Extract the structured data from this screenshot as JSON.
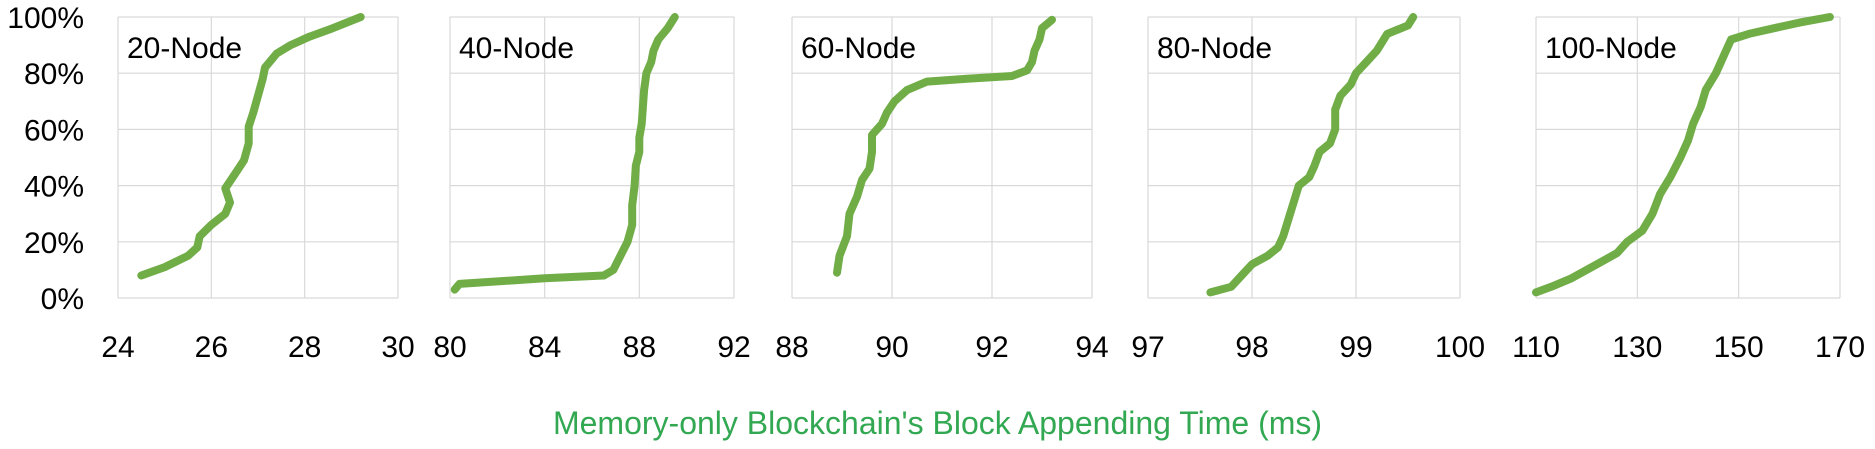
{
  "xlabel": "Memory-only Blockchain's Block Appending Time (ms)",
  "colors": {
    "series": "#70ad47",
    "xlabel": "#33a852",
    "grid": "#d9d9d9",
    "text": "#000000"
  },
  "y_ticks": [
    "0%",
    "20%",
    "40%",
    "60%",
    "80%",
    "100%"
  ],
  "chart_data": [
    {
      "type": "line",
      "label": "20-Node",
      "xlim": [
        24,
        30
      ],
      "xticks": [
        24,
        26,
        28,
        30
      ],
      "ylim": [
        0,
        1
      ],
      "grid": true,
      "points": [
        [
          24.5,
          0.08
        ],
        [
          25.0,
          0.11
        ],
        [
          25.5,
          0.15
        ],
        [
          25.7,
          0.18
        ],
        [
          25.75,
          0.22
        ],
        [
          26.0,
          0.26
        ],
        [
          26.3,
          0.3
        ],
        [
          26.4,
          0.34
        ],
        [
          26.3,
          0.39
        ],
        [
          26.5,
          0.44
        ],
        [
          26.7,
          0.49
        ],
        [
          26.8,
          0.55
        ],
        [
          26.8,
          0.61
        ],
        [
          26.9,
          0.66
        ],
        [
          27.0,
          0.72
        ],
        [
          27.1,
          0.78
        ],
        [
          27.15,
          0.82
        ],
        [
          27.4,
          0.87
        ],
        [
          27.7,
          0.9
        ],
        [
          28.1,
          0.93
        ],
        [
          28.6,
          0.96
        ],
        [
          29.2,
          1.0
        ]
      ]
    },
    {
      "type": "line",
      "label": "40-Node",
      "xlim": [
        80,
        92
      ],
      "xticks": [
        80,
        84,
        88,
        92
      ],
      "ylim": [
        0,
        1
      ],
      "grid": true,
      "points": [
        [
          80.2,
          0.03
        ],
        [
          80.4,
          0.05
        ],
        [
          84.0,
          0.07
        ],
        [
          86.5,
          0.08
        ],
        [
          86.9,
          0.1
        ],
        [
          87.2,
          0.15
        ],
        [
          87.5,
          0.2
        ],
        [
          87.7,
          0.26
        ],
        [
          87.7,
          0.33
        ],
        [
          87.8,
          0.4
        ],
        [
          87.85,
          0.47
        ],
        [
          88.0,
          0.52
        ],
        [
          88.0,
          0.57
        ],
        [
          88.1,
          0.62
        ],
        [
          88.15,
          0.68
        ],
        [
          88.2,
          0.74
        ],
        [
          88.3,
          0.8
        ],
        [
          88.5,
          0.84
        ],
        [
          88.6,
          0.88
        ],
        [
          88.8,
          0.92
        ],
        [
          89.2,
          0.96
        ],
        [
          89.5,
          1.0
        ]
      ]
    },
    {
      "type": "line",
      "label": "60-Node",
      "xlim": [
        88,
        94
      ],
      "xticks": [
        88,
        90,
        92,
        94
      ],
      "ylim": [
        0,
        1
      ],
      "grid": true,
      "points": [
        [
          88.9,
          0.09
        ],
        [
          88.95,
          0.15
        ],
        [
          89.1,
          0.22
        ],
        [
          89.15,
          0.3
        ],
        [
          89.3,
          0.36
        ],
        [
          89.4,
          0.42
        ],
        [
          89.55,
          0.46
        ],
        [
          89.6,
          0.52
        ],
        [
          89.6,
          0.58
        ],
        [
          89.8,
          0.62
        ],
        [
          89.9,
          0.66
        ],
        [
          90.05,
          0.7
        ],
        [
          90.3,
          0.74
        ],
        [
          90.7,
          0.77
        ],
        [
          91.5,
          0.78
        ],
        [
          92.4,
          0.79
        ],
        [
          92.7,
          0.81
        ],
        [
          92.8,
          0.84
        ],
        [
          92.85,
          0.88
        ],
        [
          92.95,
          0.92
        ],
        [
          93.0,
          0.96
        ],
        [
          93.2,
          0.99
        ]
      ]
    },
    {
      "type": "line",
      "label": "80-Node",
      "xlim": [
        97,
        100
      ],
      "xticks": [
        97,
        98,
        99,
        100
      ],
      "ylim": [
        0,
        1
      ],
      "grid": true,
      "points": [
        [
          97.6,
          0.02
        ],
        [
          97.8,
          0.04
        ],
        [
          97.9,
          0.08
        ],
        [
          98.0,
          0.12
        ],
        [
          98.15,
          0.15
        ],
        [
          98.25,
          0.18
        ],
        [
          98.3,
          0.22
        ],
        [
          98.35,
          0.28
        ],
        [
          98.4,
          0.34
        ],
        [
          98.45,
          0.4
        ],
        [
          98.55,
          0.43
        ],
        [
          98.6,
          0.47
        ],
        [
          98.65,
          0.52
        ],
        [
          98.75,
          0.55
        ],
        [
          98.8,
          0.6
        ],
        [
          98.8,
          0.67
        ],
        [
          98.85,
          0.72
        ],
        [
          98.95,
          0.76
        ],
        [
          99.0,
          0.8
        ],
        [
          99.1,
          0.84
        ],
        [
          99.2,
          0.88
        ],
        [
          99.3,
          0.94
        ],
        [
          99.5,
          0.97
        ],
        [
          99.55,
          1.0
        ]
      ]
    },
    {
      "type": "line",
      "label": "100-Node",
      "xlim": [
        110,
        170
      ],
      "xticks": [
        110,
        130,
        150,
        170
      ],
      "ylim": [
        0,
        1
      ],
      "grid": true,
      "points": [
        [
          110,
          0.02
        ],
        [
          113,
          0.04
        ],
        [
          117,
          0.07
        ],
        [
          120,
          0.1
        ],
        [
          123,
          0.13
        ],
        [
          126,
          0.16
        ],
        [
          128,
          0.2
        ],
        [
          131,
          0.24
        ],
        [
          133,
          0.3
        ],
        [
          134.5,
          0.37
        ],
        [
          136.5,
          0.43
        ],
        [
          138.5,
          0.5
        ],
        [
          140,
          0.56
        ],
        [
          141,
          0.62
        ],
        [
          142.5,
          0.68
        ],
        [
          143.5,
          0.74
        ],
        [
          145.5,
          0.8
        ],
        [
          147,
          0.86
        ],
        [
          148.5,
          0.92
        ],
        [
          152,
          0.94
        ],
        [
          157,
          0.96
        ],
        [
          162,
          0.98
        ],
        [
          168,
          1.0
        ]
      ]
    }
  ]
}
